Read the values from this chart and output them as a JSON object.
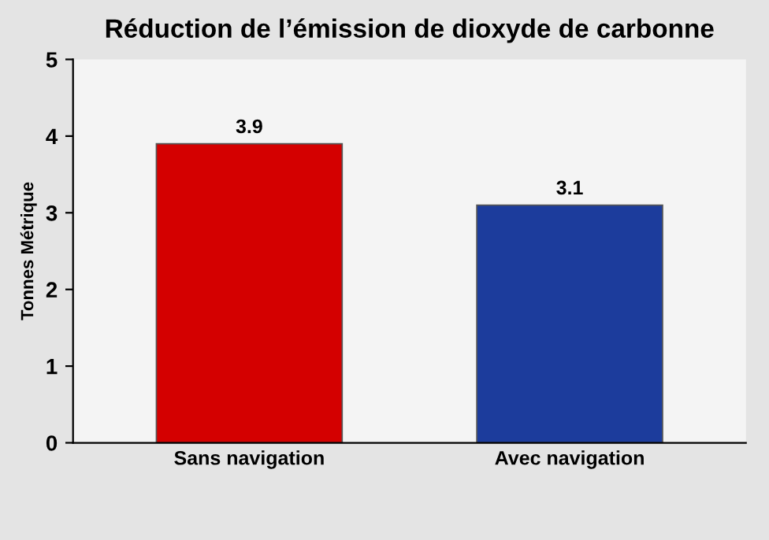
{
  "chart_data": {
    "type": "bar",
    "title": "Réduction de l’émission de dioxyde de carbonne",
    "ylabel": "Tonnes Métrique",
    "categories": [
      "Sans navigation",
      "Avec navigation"
    ],
    "values": [
      3.9,
      3.1
    ],
    "colors": [
      "#d40000",
      "#1c3c9c"
    ],
    "ylim": [
      0,
      5
    ],
    "yticks": [
      0,
      1,
      2,
      3,
      4,
      5
    ],
    "data_labels": true,
    "grid": false,
    "legend": false
  }
}
